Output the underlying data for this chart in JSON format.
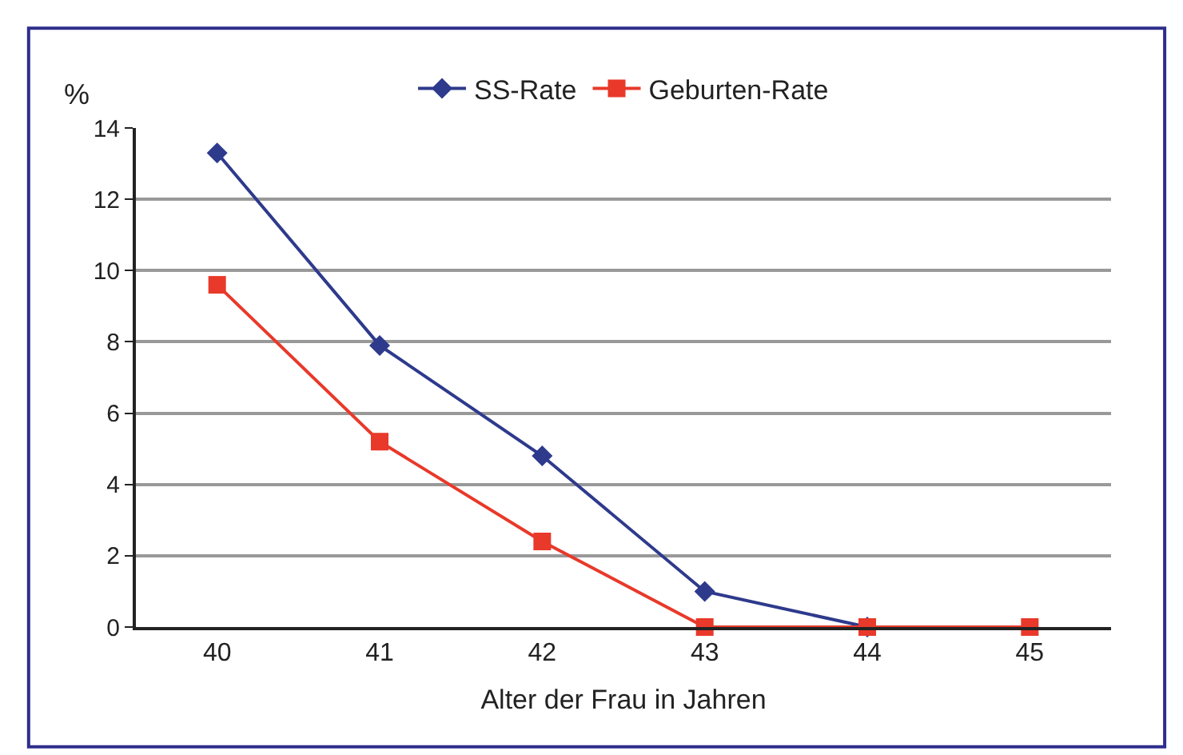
{
  "chart_data": {
    "type": "line",
    "ylabel": "%",
    "xlabel": "Alter der Frau in Jahren",
    "categories": [
      "40",
      "41",
      "42",
      "43",
      "44",
      "45"
    ],
    "series": [
      {
        "name": "SS-Rate",
        "color": "#2e3a8c",
        "marker": "diamond",
        "values": [
          13.3,
          7.9,
          4.8,
          1.0,
          0,
          null
        ]
      },
      {
        "name": "Geburten-Rate",
        "color": "#e8392a",
        "marker": "square",
        "values": [
          9.6,
          5.2,
          2.4,
          0,
          0,
          0
        ]
      }
    ],
    "ylim": [
      0,
      14
    ],
    "yticks": [
      0,
      2,
      4,
      6,
      8,
      10,
      12,
      14
    ],
    "grid": "y",
    "legend": "top"
  }
}
